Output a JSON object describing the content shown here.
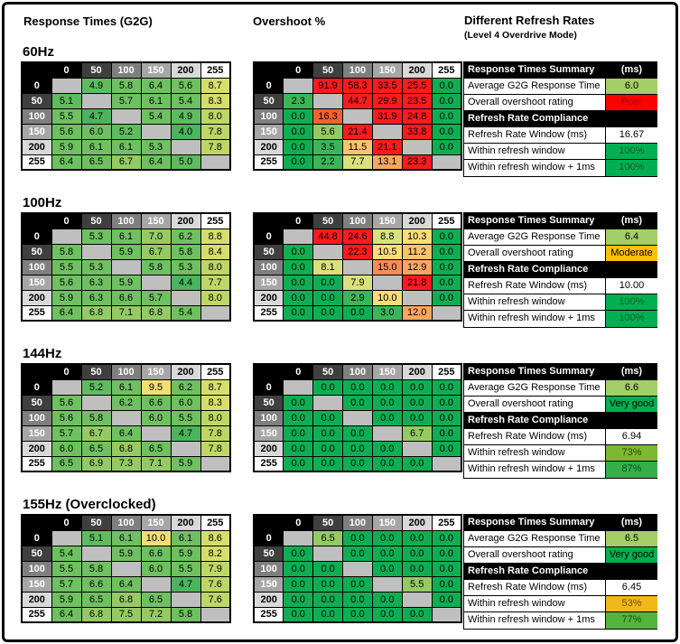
{
  "titles": {
    "response": "Response Times (G2G)",
    "overshoot": "Overshoot %",
    "refresh": "Different Refresh Rates",
    "refresh_sub": "(Level 4 Overdrive Mode)"
  },
  "colors": {
    "header_scale": [
      {
        "label": "0",
        "bg": "#000000",
        "fg": "#ffffff"
      },
      {
        "label": "50",
        "bg": "#3f3f3f",
        "fg": "#ffffff"
      },
      {
        "label": "100",
        "bg": "#7f7f7f",
        "fg": "#ffffff"
      },
      {
        "label": "150",
        "bg": "#a6a6a6",
        "fg": "#ffffff"
      },
      {
        "label": "200",
        "bg": "#d9d9d9",
        "fg": "#000000"
      },
      {
        "label": "255",
        "bg": "#ffffff",
        "fg": "#000000"
      }
    ],
    "empty_cell": "#bfbfbf",
    "response_scale": [
      [
        4.8,
        "#4bb45c"
      ],
      [
        5.2,
        "#5fbc5e"
      ],
      [
        6.6,
        "#6fc061"
      ],
      [
        7.5,
        "#94ca63"
      ],
      [
        8.1,
        "#bdd666"
      ],
      [
        9.0,
        "#d5de6c"
      ],
      [
        999,
        "#f2df72"
      ]
    ],
    "overshoot_scale": [
      [
        0,
        "#10ae53"
      ],
      [
        3.5,
        "#3cb558"
      ],
      [
        7.0,
        "#94ca62"
      ],
      [
        9.0,
        "#d9e17c"
      ],
      [
        10.5,
        "#fbdc78"
      ],
      [
        11.5,
        "#fbc46c"
      ],
      [
        13.5,
        "#fba75f"
      ],
      [
        15.5,
        "#fa8d51"
      ],
      [
        17.0,
        "#f6602f"
      ],
      [
        999,
        "#fe1a1d"
      ]
    ]
  },
  "chart_data": {
    "type": "heatmap",
    "gray_levels": [
      "0",
      "50",
      "100",
      "150",
      "200",
      "255"
    ],
    "sections": [
      {
        "label": "60Hz",
        "response": [
          [
            null,
            "4.9",
            "5.8",
            "6.4",
            "5.6",
            "8.7"
          ],
          [
            "5.1",
            null,
            "5.7",
            "6.1",
            "5.4",
            "8.3"
          ],
          [
            "5.5",
            "4.7",
            null,
            "5.4",
            "4.9",
            "8.0"
          ],
          [
            "5.6",
            "6.0",
            "5.2",
            null,
            "4.0",
            "7.8"
          ],
          [
            "5.9",
            "6.1",
            "6.1",
            "5.3",
            null,
            "7.8"
          ],
          [
            "6.4",
            "6.5",
            "6.7",
            "6.4",
            "5.0",
            null
          ]
        ],
        "overshoot": [
          [
            null,
            "91.9",
            "58.3",
            "33.5",
            "25.5",
            "0.0"
          ],
          [
            "2.3",
            null,
            "44.7",
            "29.9",
            "23.5",
            "0.0"
          ],
          [
            "0.0",
            "16.3",
            null,
            "31.9",
            "24.8",
            "0.0"
          ],
          [
            "0.0",
            "5.6",
            "21.4",
            null,
            "33.8",
            "0.0"
          ],
          [
            "0.0",
            "3.5",
            "11.5",
            "21.1",
            null,
            "0.0"
          ],
          [
            "0.0",
            "2.2",
            "7.7",
            "13.1",
            "23.3",
            null
          ]
        ],
        "summary": {
          "section1_title": "Response Times Summary",
          "section1_unit": "(ms)",
          "section2_title": "Refresh Rate Compliance",
          "rows1": [
            {
              "label": "Average G2G Response Time",
              "value": "6.0",
              "bg": "#a4ce67",
              "fg": "#000000"
            },
            {
              "label": "Overall overshoot rating",
              "value": "Poor",
              "bg": "#fe0000",
              "fg": "#9c0006"
            }
          ],
          "rows2": [
            {
              "label": "Refresh Rate Window (ms)",
              "value": "16.67",
              "bg": "#ffffff",
              "fg": "#000000"
            },
            {
              "label": "Within refresh window",
              "value": "100%",
              "bg": "#00b050",
              "fg": "#0e5c26"
            },
            {
              "label": "Within refresh window + 1ms",
              "value": "100%",
              "bg": "#00b050",
              "fg": "#0e5c26"
            }
          ]
        }
      },
      {
        "label": "100Hz",
        "response": [
          [
            null,
            "5.3",
            "6.1",
            "7.0",
            "6.2",
            "8.8"
          ],
          [
            "5.8",
            null,
            "5.9",
            "6.7",
            "5.8",
            "8.4"
          ],
          [
            "5.5",
            "5.3",
            null,
            "5.8",
            "5.3",
            "8.0"
          ],
          [
            "5.6",
            "6.3",
            "5.9",
            null,
            "4.4",
            "7.7"
          ],
          [
            "5.9",
            "6.3",
            "6.6",
            "5.7",
            null,
            "8.0"
          ],
          [
            "6.4",
            "6.8",
            "7.1",
            "6.8",
            "5.4",
            null
          ]
        ],
        "overshoot": [
          [
            null,
            "44.8",
            "24.6",
            "8.8",
            "10.3",
            "0.0"
          ],
          [
            "0.0",
            null,
            "22.3",
            "10.5",
            "11.2",
            "0.0"
          ],
          [
            "0.0",
            "8.1",
            null,
            "15.0",
            "12.9",
            "0.0"
          ],
          [
            "0.0",
            "0.0",
            "7.9",
            null,
            "21.8",
            "0.0"
          ],
          [
            "0.0",
            "0.0",
            "2.9",
            "10.0",
            null,
            "0.0"
          ],
          [
            "0.0",
            "0.0",
            "0.0",
            "3.0",
            "12.0",
            null
          ]
        ],
        "summary": {
          "section1_title": "Response Times Summary",
          "section1_unit": "(ms)",
          "section2_title": "Refresh Rate Compliance",
          "rows1": [
            {
              "label": "Average G2G Response Time",
              "value": "6.4",
              "bg": "#a4ce67",
              "fg": "#000000"
            },
            {
              "label": "Overall overshoot rating",
              "value": "Moderate",
              "bg": "#ffc000",
              "fg": "#000000"
            }
          ],
          "rows2": [
            {
              "label": "Refresh Rate Window (ms)",
              "value": "10.00",
              "bg": "#ffffff",
              "fg": "#000000"
            },
            {
              "label": "Within refresh window",
              "value": "100%",
              "bg": "#00b050",
              "fg": "#0e5c26"
            },
            {
              "label": "Within refresh window + 1ms",
              "value": "100%",
              "bg": "#00b050",
              "fg": "#0e5c26"
            }
          ]
        }
      },
      {
        "label": "144Hz",
        "response": [
          [
            null,
            "5.2",
            "6.1",
            "9.5",
            "6.2",
            "8.7"
          ],
          [
            "5.6",
            null,
            "6.2",
            "6.6",
            "6.0",
            "8.3"
          ],
          [
            "5.6",
            "5.8",
            null,
            "6.0",
            "5.5",
            "8.0"
          ],
          [
            "5.7",
            "6.7",
            "6.4",
            null,
            "4.7",
            "7.8"
          ],
          [
            "6.0",
            "6.5",
            "6.8",
            "6.5",
            null,
            "7.8"
          ],
          [
            "6.5",
            "6.9",
            "7.3",
            "7.1",
            "5.9",
            null
          ]
        ],
        "overshoot": [
          [
            null,
            "0.0",
            "0.0",
            "0.0",
            "0.0",
            "0.0"
          ],
          [
            "0.0",
            null,
            "0.0",
            "0.0",
            "0.0",
            "0.0"
          ],
          [
            "0.0",
            "0.0",
            null,
            "0.0",
            "0.0",
            "0.0"
          ],
          [
            "0.0",
            "0.0",
            "0.0",
            null,
            "6.7",
            "0.0"
          ],
          [
            "0.0",
            "0.0",
            "0.0",
            "0.0",
            null,
            "0.0"
          ],
          [
            "0.0",
            "0.0",
            "0.0",
            "0.0",
            "0.0",
            null
          ]
        ],
        "summary": {
          "section1_title": "Response Times Summary",
          "section1_unit": "(ms)",
          "section2_title": "Refresh Rate Compliance",
          "rows1": [
            {
              "label": "Average G2G Response Time",
              "value": "6.6",
              "bg": "#a4ce67",
              "fg": "#000000"
            },
            {
              "label": "Overall overshoot rating",
              "value": "Very good",
              "bg": "#00b050",
              "fg": "#000000"
            }
          ],
          "rows2": [
            {
              "label": "Refresh Rate Window (ms)",
              "value": "6.94",
              "bg": "#ffffff",
              "fg": "#000000"
            },
            {
              "label": "Within refresh window",
              "value": "73%",
              "bg": "#7db832",
              "fg": "#2c4a00"
            },
            {
              "label": "Within refresh window + 1ms",
              "value": "87%",
              "bg": "#33b04a",
              "fg": "#0b4d1e"
            }
          ]
        }
      },
      {
        "label": "155Hz (Overclocked)",
        "response": [
          [
            null,
            "5.1",
            "6.1",
            "10.0",
            "6.1",
            "8.6"
          ],
          [
            "5.4",
            null,
            "5.9",
            "6.6",
            "5.9",
            "8.2"
          ],
          [
            "5.5",
            "5.8",
            null,
            "6.0",
            "5.5",
            "7.9"
          ],
          [
            "5.7",
            "6.6",
            "6.4",
            null,
            "4.7",
            "7.6"
          ],
          [
            "5.9",
            "6.5",
            "6.8",
            "6.5",
            null,
            "7.6"
          ],
          [
            "6.4",
            "6.8",
            "7.5",
            "7.2",
            "5.8",
            null
          ]
        ],
        "overshoot": [
          [
            null,
            "6.5",
            "0.0",
            "0.0",
            "0.0",
            "0.0"
          ],
          [
            "0.0",
            null,
            "0.0",
            "0.0",
            "0.0",
            "0.0"
          ],
          [
            "0.0",
            "0.0",
            null,
            "0.0",
            "0.0",
            "0.0"
          ],
          [
            "0.0",
            "0.0",
            "0.0",
            null,
            "5.5",
            "0.0"
          ],
          [
            "0.0",
            "0.0",
            "0.0",
            "0.0",
            null,
            "0.0"
          ],
          [
            "0.0",
            "0.0",
            "0.0",
            "0.0",
            "0.0",
            null
          ]
        ],
        "summary": {
          "section1_title": "Response Times Summary",
          "section1_unit": "(ms)",
          "section2_title": "Refresh Rate Compliance",
          "rows1": [
            {
              "label": "Average G2G Response Time",
              "value": "6.5",
              "bg": "#a4ce67",
              "fg": "#000000"
            },
            {
              "label": "Overall overshoot rating",
              "value": "Very good",
              "bg": "#00b050",
              "fg": "#000000"
            }
          ],
          "rows2": [
            {
              "label": "Refresh Rate Window (ms)",
              "value": "6.45",
              "bg": "#ffffff",
              "fg": "#000000"
            },
            {
              "label": "Within refresh window",
              "value": "53%",
              "bg": "#f0b81a",
              "fg": "#6b4e00"
            },
            {
              "label": "Within refresh window + 1ms",
              "value": "77%",
              "bg": "#55b43b",
              "fg": "#174f12"
            }
          ]
        }
      }
    ]
  }
}
